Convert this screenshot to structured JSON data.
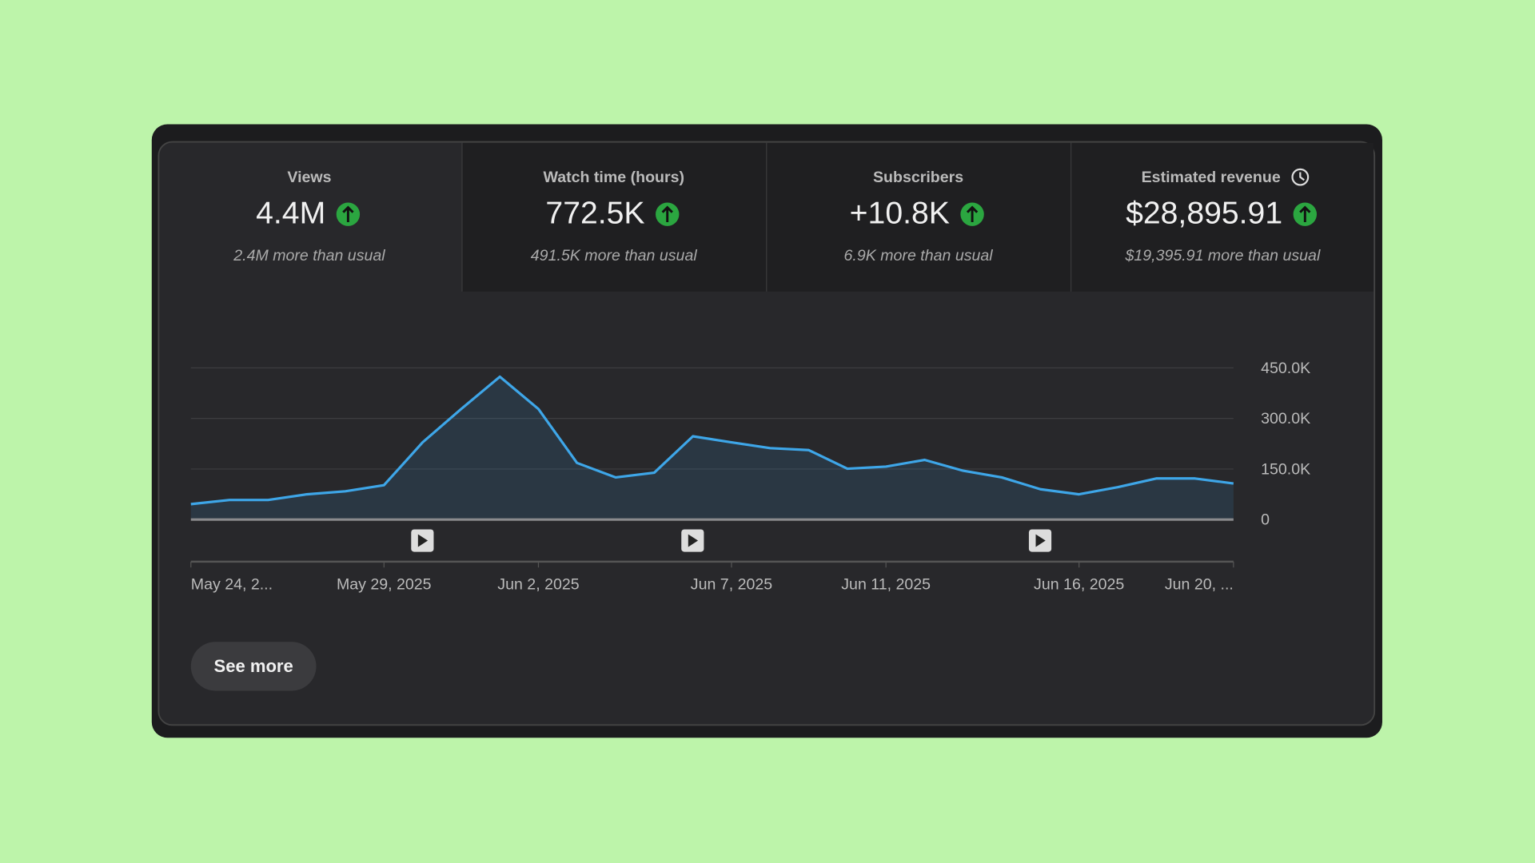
{
  "metrics": [
    {
      "label": "Views",
      "value": "4.4M",
      "note": "2.4M more than usual"
    },
    {
      "label": "Watch time (hours)",
      "value": "772.5K",
      "note": "491.5K more than usual"
    },
    {
      "label": "Subscribers",
      "value": "+10.8K",
      "note": "6.9K more than usual"
    },
    {
      "label": "Estimated revenue",
      "value": "$28,895.91",
      "note": "$19,395.91 more than usual"
    }
  ],
  "chart_data": {
    "type": "area",
    "categories": [
      "May 24, 2...",
      null,
      null,
      null,
      null,
      "May 29, 2025",
      null,
      null,
      null,
      "Jun 2, 2025",
      null,
      null,
      null,
      null,
      "Jun 7, 2025",
      null,
      null,
      null,
      "Jun 11, 2025",
      null,
      null,
      null,
      null,
      "Jun 16, 2025",
      null,
      null,
      null,
      "Jun 20, ..."
    ],
    "values": [
      46000,
      58000,
      58000,
      75000,
      84000,
      102000,
      229000,
      328000,
      424000,
      328000,
      168000,
      125000,
      139000,
      247000,
      229000,
      212000,
      206000,
      151000,
      157000,
      177000,
      145000,
      125000,
      90000,
      75000,
      96000,
      122000,
      122000,
      107000
    ],
    "color": "#3ea6e8",
    "ylim": [
      0,
      450000
    ],
    "yticks": [
      0,
      {
        "value": 150000,
        "label": "150.0K"
      },
      {
        "value": 300000,
        "label": "300.0K"
      },
      {
        "value": 450000,
        "label": "450.0K"
      }
    ],
    "grid": true
  },
  "button": "See more"
}
